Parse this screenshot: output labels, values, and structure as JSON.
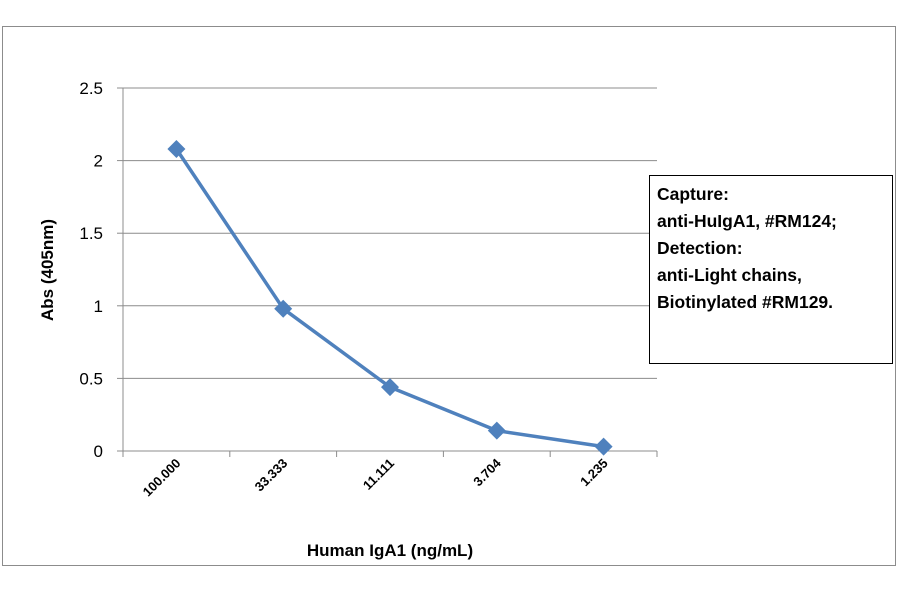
{
  "chart_data": {
    "type": "line",
    "categories": [
      "100.000",
      "33.333",
      "11.111",
      "3.704",
      "1.235"
    ],
    "series": [
      {
        "values": [
          2.08,
          0.98,
          0.44,
          0.14,
          0.03
        ],
        "color": "#4f81bd",
        "marker": "diamond"
      }
    ],
    "xlabel": "Human IgA1 (ng/mL)",
    "ylabel": "Abs (405nm)",
    "ylim": [
      0,
      2.5
    ],
    "yticks": [
      "0",
      "0.5",
      "1",
      "1.5",
      "2",
      "2.5"
    ],
    "grid": true,
    "annotation": {
      "lines": [
        "Capture:",
        "anti-HuIgA1, #RM124;",
        "Detection:",
        "anti-Light chains,",
        "Biotinylated #RM129."
      ]
    }
  }
}
